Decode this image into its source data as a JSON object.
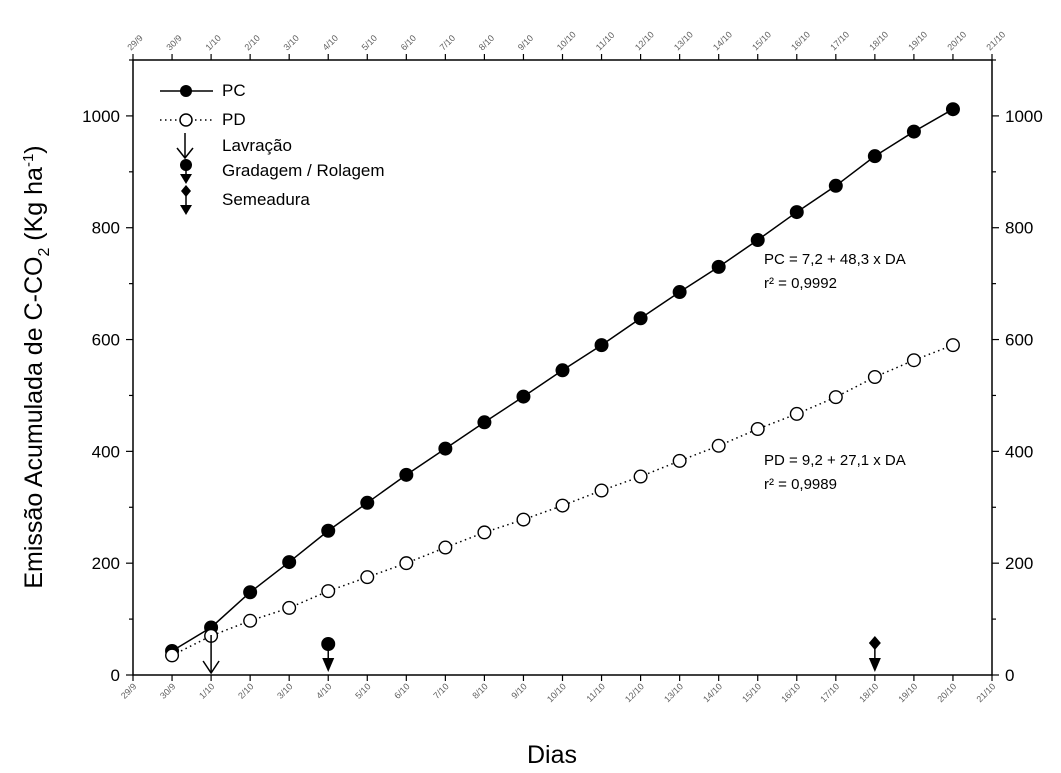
{
  "chart_data": {
    "type": "line",
    "xlabel": "Dias",
    "ylabel_main": "Emissão Acumulada  de C-CO",
    "ylabel_sub": "2",
    "ylabel_unit_open": " (Kg ha",
    "ylabel_unit_sup": "-1",
    "ylabel_unit_close": ")",
    "x_ticks": [
      "29/9",
      "30/9",
      "1/10",
      "2/10",
      "3/10",
      "4/10",
      "5/10",
      "6/10",
      "7/10",
      "8/10",
      "9/10",
      "10/10",
      "11/10",
      "12/10",
      "13/10",
      "14/10",
      "15/10",
      "16/10",
      "17/10",
      "18/10",
      "19/10",
      "20/10",
      "21/10"
    ],
    "ylim": [
      0,
      1100
    ],
    "y_ticks": [
      0,
      200,
      400,
      600,
      800,
      1000
    ],
    "series": [
      {
        "name": "PC",
        "marker": "filled-circle",
        "line": "solid",
        "x": [
          "30/9",
          "1/10",
          "2/10",
          "3/10",
          "4/10",
          "5/10",
          "6/10",
          "7/10",
          "8/10",
          "9/10",
          "10/10",
          "11/10",
          "12/10",
          "13/10",
          "14/10",
          "15/10",
          "16/10",
          "17/10",
          "18/10",
          "19/10",
          "20/10"
        ],
        "values": [
          43,
          85,
          148,
          202,
          258,
          308,
          358,
          405,
          452,
          498,
          545,
          590,
          638,
          685,
          730,
          778,
          828,
          875,
          928,
          972,
          1012
        ]
      },
      {
        "name": "PD",
        "marker": "open-circle",
        "line": "dotted",
        "x": [
          "30/9",
          "1/10",
          "2/10",
          "3/10",
          "4/10",
          "5/10",
          "6/10",
          "7/10",
          "8/10",
          "9/10",
          "10/10",
          "11/10",
          "12/10",
          "13/10",
          "14/10",
          "15/10",
          "16/10",
          "17/10",
          "18/10",
          "19/10",
          "20/10"
        ],
        "values": [
          35,
          70,
          97,
          120,
          150,
          175,
          200,
          228,
          255,
          278,
          303,
          330,
          355,
          383,
          410,
          440,
          467,
          497,
          533,
          563,
          590
        ]
      }
    ],
    "events": [
      {
        "name": "Lavração",
        "symbol": "open-arrow",
        "x": "1/10"
      },
      {
        "name": "Gradagem / Rolagem",
        "symbol": "circle-arrow",
        "x": "4/10"
      },
      {
        "name": "Semeadura",
        "symbol": "diamond-arrow",
        "x": "18/10"
      }
    ],
    "annotations": [
      {
        "line1": "PC = 7,2 + 48,3 x DA",
        "line2": "r² =  0,9992"
      },
      {
        "line1": "PD = 9,2 + 27,1 x DA",
        "line2": "r² =  0,9989"
      }
    ],
    "legend_position": "top-left",
    "grid": false
  }
}
